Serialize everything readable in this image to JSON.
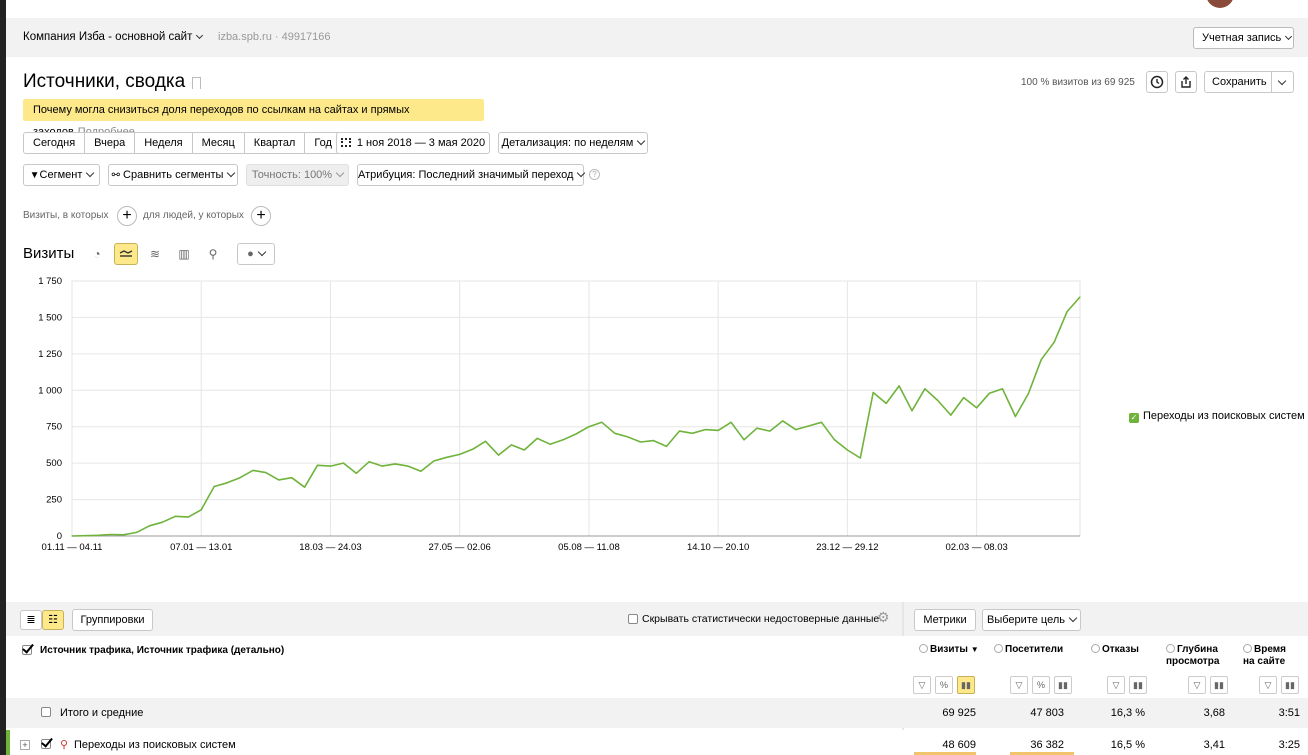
{
  "header": {
    "company": "Компания Изба - основной сайт",
    "site": "izba.spb.ru · 49917166",
    "account_label": "Учетная запись"
  },
  "page": {
    "title": "Источники, сводка",
    "visits_pct": "100 % визитов из 69 925",
    "save_label": "Сохранить"
  },
  "notice": {
    "text": "Почему могла снизиться доля переходов по ссылкам на сайтах и прямых заходов",
    "more": "Подробнее"
  },
  "periods": [
    "Сегодня",
    "Вчера",
    "Неделя",
    "Месяц",
    "Квартал",
    "Год"
  ],
  "date_range": "1 ноя 2018 — 3 мая 2020",
  "detail": "Детализация: по неделям",
  "filters": {
    "segment": "Сегмент",
    "compare": "Сравнить сегменты",
    "accuracy": "Точность: 100%",
    "attribution": "Атрибуция: Последний значимый переход"
  },
  "conditions": {
    "visits_where": "Визиты, в которых",
    "people_where": "для людей, у которых"
  },
  "chart_section": {
    "title": "Визиты"
  },
  "chart_data": {
    "type": "line",
    "title": "",
    "xlabel": "",
    "ylabel": "",
    "ylim": [
      0,
      1750
    ],
    "yticks": [
      0,
      250,
      500,
      750,
      1000,
      1250,
      1500,
      1750
    ],
    "ytick_labels": [
      "0",
      "250",
      "500",
      "750",
      "1 000",
      "1 250",
      "1 500",
      "1 750"
    ],
    "xtick_labels": [
      "01.11 — 04.11",
      "07.01 — 13.01",
      "18.03 — 24.03",
      "27.05 — 02.06",
      "05.08 — 11.08",
      "14.10 — 20.10",
      "23.12 — 29.12",
      "02.03 — 08.03"
    ],
    "xtick_index": [
      0,
      10,
      20,
      30,
      40,
      50,
      60,
      70
    ],
    "grid": true,
    "legend": "right",
    "color": "#6fb33b",
    "series": [
      {
        "name": "Переходы из поисковых систем",
        "values": [
          0,
          2,
          5,
          10,
          8,
          25,
          70,
          95,
          135,
          130,
          180,
          340,
          365,
          400,
          450,
          435,
          385,
          400,
          335,
          485,
          480,
          500,
          430,
          510,
          480,
          495,
          480,
          445,
          515,
          540,
          560,
          595,
          650,
          555,
          625,
          590,
          670,
          630,
          660,
          700,
          750,
          780,
          705,
          680,
          645,
          655,
          615,
          720,
          705,
          730,
          725,
          780,
          660,
          740,
          720,
          790,
          730,
          755,
          780,
          660,
          590,
          535,
          985,
          910,
          1030,
          860,
          1010,
          930,
          830,
          950,
          880,
          980,
          1010,
          820,
          975,
          1210,
          1330,
          1540,
          1640
        ]
      }
    ]
  },
  "table_toolbar": {
    "groupings": "Группировки",
    "hide_label": "Скрывать статистически недостоверные данные",
    "metrics": "Метрики",
    "goal": "Выберите цель"
  },
  "table": {
    "dimension_header": "Источник трафика, Источник трафика (детально)",
    "columns": [
      {
        "label": "Визиты",
        "sorted": "▼"
      },
      {
        "label": "Посетители"
      },
      {
        "label": "Отказы"
      },
      {
        "label": "Глубина просмотра"
      },
      {
        "label": "Время на сайте"
      }
    ],
    "total": {
      "label": "Итого и средние",
      "values": [
        "69 925",
        "47 803",
        "16,3 %",
        "3,68",
        "3:51"
      ]
    },
    "rows": [
      {
        "label": "Переходы из поисковых систем",
        "values": [
          "48 609",
          "36 382",
          "16,5 %",
          "3,41",
          "3:25"
        ]
      }
    ]
  }
}
